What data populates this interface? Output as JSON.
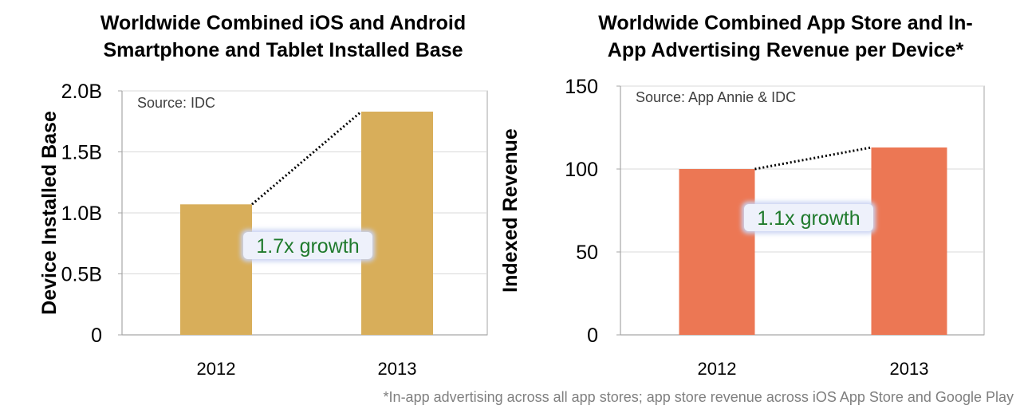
{
  "colors": {
    "left_bar": "#d8ae5a",
    "right_bar": "#ec7754",
    "growth_text": "#1f7a2c",
    "grid": "#d9d9d9",
    "axis": "#a6a6a6",
    "growth_box": "#eef1fb"
  },
  "footnote": "*In-app advertising across all app stores; app store revenue across iOS App Store and Google Play",
  "chart_data": [
    {
      "type": "bar",
      "title": "Worldwide Combined iOS and Android Smartphone and Tablet Installed Base",
      "title_lines": [
        "Worldwide Combined iOS and Android",
        "Smartphone and Tablet Installed Base"
      ],
      "source": "Source: IDC",
      "ylabel": "Device Installed Base",
      "xlabel": "",
      "categories": [
        "2012",
        "2013"
      ],
      "values": [
        1.07,
        1.83
      ],
      "ylim": [
        0,
        2.0
      ],
      "yticks": [
        0,
        0.5,
        1.0,
        1.5,
        2.0
      ],
      "ytick_labels": [
        "0",
        "0.5B",
        "1.0B",
        "1.5B",
        "2.0B"
      ],
      "grid": true,
      "annotation": "1.7x growth"
    },
    {
      "type": "bar",
      "title": "Worldwide Combined App Store and In-App Advertising Revenue per Device*",
      "title_lines": [
        "Worldwide Combined App Store and In-",
        "App Advertising Revenue per Device*"
      ],
      "source": "Source: App Annie & IDC",
      "ylabel": "Indexed Revenue",
      "xlabel": "",
      "categories": [
        "2012",
        "2013"
      ],
      "values": [
        100,
        113
      ],
      "ylim": [
        0,
        150
      ],
      "yticks": [
        0,
        50,
        100,
        150
      ],
      "ytick_labels": [
        "0",
        "50",
        "100",
        "150"
      ],
      "grid": true,
      "annotation": "1.1x growth"
    }
  ]
}
